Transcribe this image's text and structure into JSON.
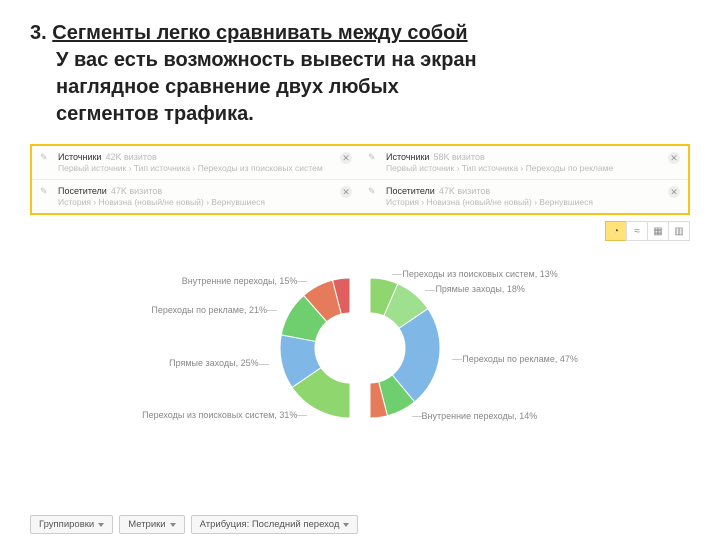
{
  "heading": {
    "number": "3.",
    "title": "Сегменты легко сравнивать между собой",
    "description_l1": "У вас есть возможность вывести на экран",
    "description_l2": "наглядное сравнение двух любых",
    "description_l3": "сегментов трафика."
  },
  "segments": {
    "rows": [
      {
        "left": {
          "name": "Источники",
          "count": "42K визитов",
          "path": "Первый источник › Тип источника › Переходы из поисковых систем"
        },
        "right": {
          "name": "Источники",
          "count": "58K визитов",
          "path": "Первый источник › Тип источника › Переходы по рекламе"
        }
      },
      {
        "left": {
          "name": "Посетители",
          "count": "47K визитов",
          "path": "История › Новизна (новый/не новый) › Вернувшиеся"
        },
        "right": {
          "name": "Посетители",
          "count": "47K визитов",
          "path": "История › Новизна (новый/не новый) › Вернувшиеся"
        }
      }
    ]
  },
  "toolbar": {
    "items": [
      {
        "name": "pie-icon",
        "glyph": "◔",
        "active": true
      },
      {
        "name": "line-icon",
        "glyph": "≈",
        "active": false
      },
      {
        "name": "grid-icon",
        "glyph": "▦",
        "active": false
      },
      {
        "name": "bar-icon",
        "glyph": "▥",
        "active": false
      }
    ]
  },
  "chart": {
    "type": "donut-half-pair",
    "inner_r": 35,
    "outer_r": 70,
    "background_color": "#ffffff",
    "label_fontsize": 9,
    "label_color": "#888888",
    "left": {
      "slices": [
        {
          "label": "Переходы из поисковых систем, 31%",
          "value": 31,
          "color": "#8fd66f"
        },
        {
          "label": "Прямые заходы, 25%",
          "value": 25,
          "color": "#7fb8e6"
        },
        {
          "label": "Переходы по рекламе, 21%",
          "value": 21,
          "color": "#6fcf6f"
        },
        {
          "label": "Внутренние переходы, 15%",
          "value": 15,
          "color": "#e57b5a"
        },
        {
          "label": "",
          "value": 8,
          "color": "#e06060"
        }
      ]
    },
    "right": {
      "slices": [
        {
          "label": "Переходы из поисковых систем, 13%",
          "value": 13,
          "color": "#8fd66f"
        },
        {
          "label": "Прямые заходы, 18%",
          "value": 18,
          "color": "#9fe08f"
        },
        {
          "label": "Переходы по рекламе, 47%",
          "value": 47,
          "color": "#7fb8e6"
        },
        {
          "label": "Внутренние переходы, 14%",
          "value": 14,
          "color": "#6fcf6f"
        },
        {
          "label": "",
          "value": 8,
          "color": "#e57b5a"
        }
      ]
    }
  },
  "bottom_controls": {
    "buttons": [
      {
        "label": "Группировки"
      },
      {
        "label": "Метрики"
      },
      {
        "label": "Атрибуция: Последний переход"
      }
    ]
  }
}
